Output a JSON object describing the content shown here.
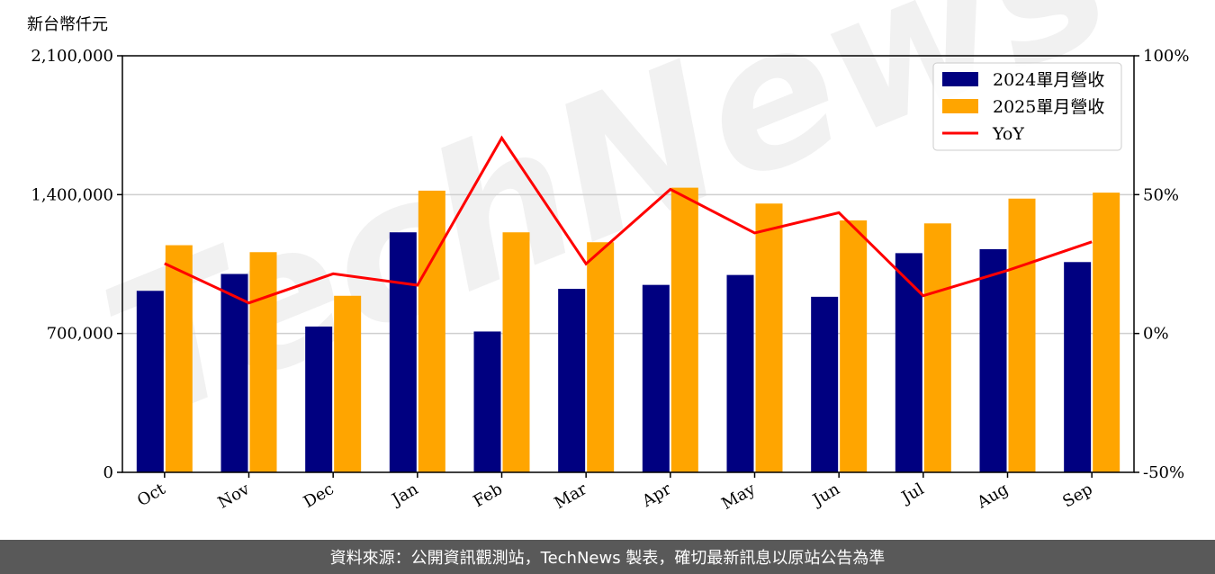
{
  "chart_data": {
    "type": "bar",
    "unit_label": "新台幣仟元",
    "categories": [
      "Oct",
      "Nov",
      "Dec",
      "Jan",
      "Feb",
      "Mar",
      "Apr",
      "May",
      "Jun",
      "Jul",
      "Aug",
      "Sep"
    ],
    "series": [
      {
        "name": "2024單月營收",
        "type": "bar",
        "axis": "left",
        "color": "#000080",
        "values": [
          915000,
          1000000,
          735000,
          1210000,
          710000,
          925000,
          945000,
          995000,
          885000,
          1105000,
          1125000,
          1060000
        ]
      },
      {
        "name": "2025單月營收",
        "type": "bar",
        "axis": "left",
        "color": "#ffa500",
        "values": [
          1145000,
          1110000,
          890000,
          1420000,
          1210000,
          1160000,
          1435000,
          1355000,
          1270000,
          1255000,
          1380000,
          1410000
        ]
      },
      {
        "name": "YoY",
        "type": "line",
        "axis": "right",
        "color": "#ff0000",
        "values": [
          25.2,
          11.0,
          21.5,
          17.4,
          70.4,
          25.1,
          51.9,
          36.2,
          43.5,
          13.6,
          22.7,
          33.0
        ]
      }
    ],
    "y_left": {
      "min": 0,
      "max": 2100000,
      "ticks": [
        0,
        700000,
        1400000,
        2100000
      ],
      "tick_labels": [
        "0",
        "700,000",
        "1,400,000",
        "2,100,000"
      ]
    },
    "y_right": {
      "min": -50,
      "max": 100,
      "ticks": [
        -50,
        0,
        50,
        100
      ],
      "tick_labels": [
        "-50%",
        "0%",
        "50%",
        "100%"
      ]
    },
    "grid": "horizontal",
    "legend_position": "top-right"
  },
  "watermark": "TechNews",
  "footer": {
    "source_text": "資料來源：公開資訊觀測站，TechNews 製表，確切最新訊息以原站公告為準"
  }
}
